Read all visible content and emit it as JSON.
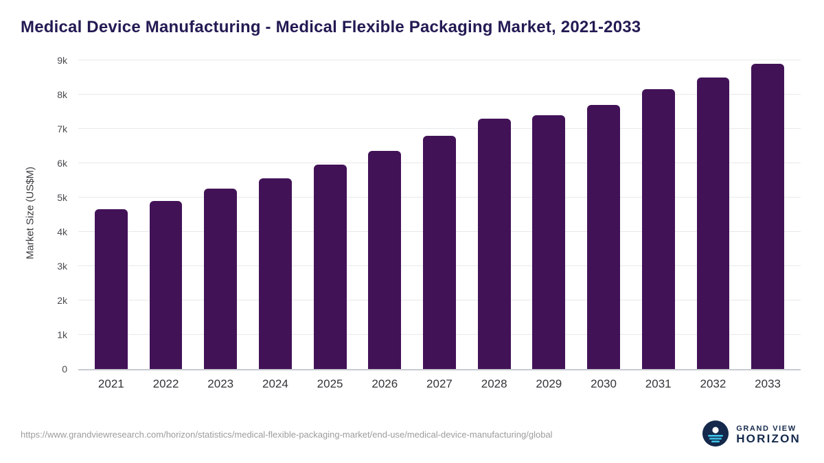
{
  "title": "Medical Device Manufacturing - Medical Flexible Packaging Market, 2021-2033",
  "chart_data": {
    "type": "bar",
    "categories": [
      "2021",
      "2022",
      "2023",
      "2024",
      "2025",
      "2026",
      "2027",
      "2028",
      "2029",
      "2030",
      "2031",
      "2032",
      "2033"
    ],
    "values": [
      4650,
      4900,
      5250,
      5550,
      5950,
      6350,
      6800,
      7300,
      7400,
      7700,
      8150,
      8500,
      8900
    ],
    "title": "Medical Device Manufacturing - Medical Flexible Packaging Market, 2021-2033",
    "xlabel": "",
    "ylabel": "Market Size (US$M)",
    "ylim": [
      0,
      9000
    ],
    "yticks": [
      0,
      1000,
      2000,
      3000,
      4000,
      5000,
      6000,
      7000,
      8000,
      9000
    ],
    "ytick_labels": [
      "0",
      "1k",
      "2k",
      "3k",
      "4k",
      "5k",
      "6k",
      "7k",
      "8k",
      "9k"
    ],
    "grid": true,
    "legend": "none",
    "bar_color": "#421257"
  },
  "colors": {
    "bar": "#421257",
    "title": "#241a53",
    "gridline": "#e7e8ea",
    "logo_navy": "#14294b",
    "logo_cyan": "#3cc3ea"
  },
  "footer": {
    "source_url": "https://www.grandviewresearch.com/horizon/statistics/medical-flexible-packaging-market/end-use/medical-device-manufacturing/global",
    "logo": {
      "line1": "GRAND VIEW",
      "line2": "HORIZON"
    }
  }
}
